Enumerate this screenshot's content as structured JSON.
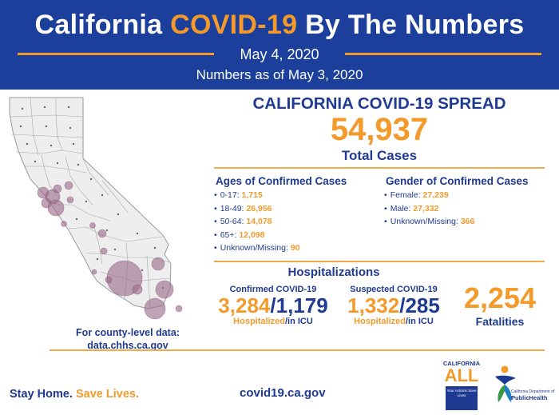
{
  "header": {
    "title_pre": "California ",
    "title_accent": "COVID-19",
    "title_post": " By The Numbers",
    "date": "May 4, 2020",
    "as_of": "Numbers as of May 3, 2020"
  },
  "spread": {
    "title": "CALIFORNIA COVID-19 SPREAD",
    "total_cases": "54,937",
    "total_label": "Total Cases"
  },
  "ages": {
    "title": "Ages of Confirmed Cases",
    "items": [
      {
        "label": "0-17: ",
        "value": "1,715"
      },
      {
        "label": "18-49: ",
        "value": "26,956"
      },
      {
        "label": "50-64: ",
        "value": "14,078"
      },
      {
        "label": "65+: ",
        "value": "12,098"
      },
      {
        "label": "Unknown/Missing: ",
        "value": "90"
      }
    ]
  },
  "gender": {
    "title": "Gender of Confirmed Cases",
    "items": [
      {
        "label": "Female: ",
        "value": "27,239"
      },
      {
        "label": "Male: ",
        "value": "27,332"
      },
      {
        "label": "Unknown/Missing: ",
        "value": "366"
      }
    ]
  },
  "hospitalizations": {
    "title": "Hospitalizations",
    "confirmed": {
      "label": "Confirmed COVID-19",
      "hospitalized": "3,284",
      "sep": "/",
      "icu": "1,179",
      "sub_hosp": "Hospitalized",
      "sub_icu": "/in ICU"
    },
    "suspected": {
      "label": "Suspected COVID-19",
      "hospitalized": "1,332",
      "sep": "/",
      "icu": "285",
      "sub_hosp": "Hospitalized",
      "sub_icu": "/in ICU"
    }
  },
  "fatalities": {
    "value": "2,254",
    "label": "Fatalities"
  },
  "map": {
    "note_line1": "For county-level data:",
    "note_line2": "data.chhs.ca.gov"
  },
  "footer": {
    "slogan_a": "Stay Home. ",
    "slogan_b": "Save Lives.",
    "site": "covid19.ca.gov",
    "ca_all_top": "CALIFORNIA",
    "ca_all_big": "ALL",
    "ca_all_box": "Your Actions Save Lives",
    "cdph_small": "California Department of",
    "cdph_big": "PublicHealth"
  },
  "colors": {
    "navy": "#1b3f9a",
    "text_blue": "#1f3a93",
    "orange": "#f39a2b",
    "bubble": "#9b6a8a"
  }
}
